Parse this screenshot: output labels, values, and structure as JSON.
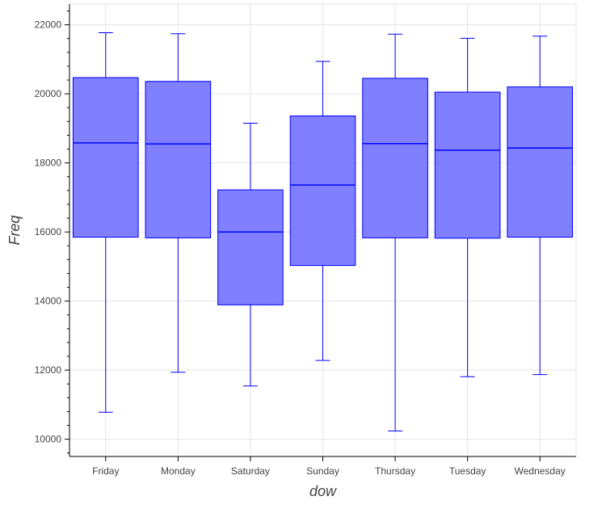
{
  "chart_data": {
    "type": "box",
    "xlabel": "dow",
    "ylabel": "Freq",
    "categories": [
      "Friday",
      "Monday",
      "Saturday",
      "Sunday",
      "Thursday",
      "Tuesday",
      "Wednesday"
    ],
    "ylim": [
      9500,
      22600
    ],
    "yticks": [
      10000,
      12000,
      14000,
      16000,
      18000,
      20000,
      22000
    ],
    "ytick_labels": [
      "10000",
      "12000",
      "14000",
      "16000",
      "18000",
      "20000",
      "22000"
    ],
    "grid": true,
    "box_fill_color": "#7f7fff",
    "box_line_color": "#0000ff",
    "boxes": [
      {
        "category": "Friday",
        "lower": 10780,
        "q1": 15850,
        "median": 18580,
        "q3": 20470,
        "upper": 21770
      },
      {
        "category": "Monday",
        "lower": 11940,
        "q1": 15830,
        "median": 18550,
        "q3": 20360,
        "upper": 21740
      },
      {
        "category": "Saturday",
        "lower": 11540,
        "q1": 13890,
        "median": 16000,
        "q3": 17220,
        "upper": 19150
      },
      {
        "category": "Sunday",
        "lower": 12280,
        "q1": 15030,
        "median": 17360,
        "q3": 19360,
        "upper": 20940
      },
      {
        "category": "Thursday",
        "lower": 10240,
        "q1": 15830,
        "median": 18560,
        "q3": 20450,
        "upper": 21730
      },
      {
        "category": "Tuesday",
        "lower": 11810,
        "q1": 15820,
        "median": 18370,
        "q3": 20050,
        "upper": 21610
      },
      {
        "category": "Wednesday",
        "lower": 11870,
        "q1": 15850,
        "median": 18430,
        "q3": 20200,
        "upper": 21670
      }
    ]
  }
}
